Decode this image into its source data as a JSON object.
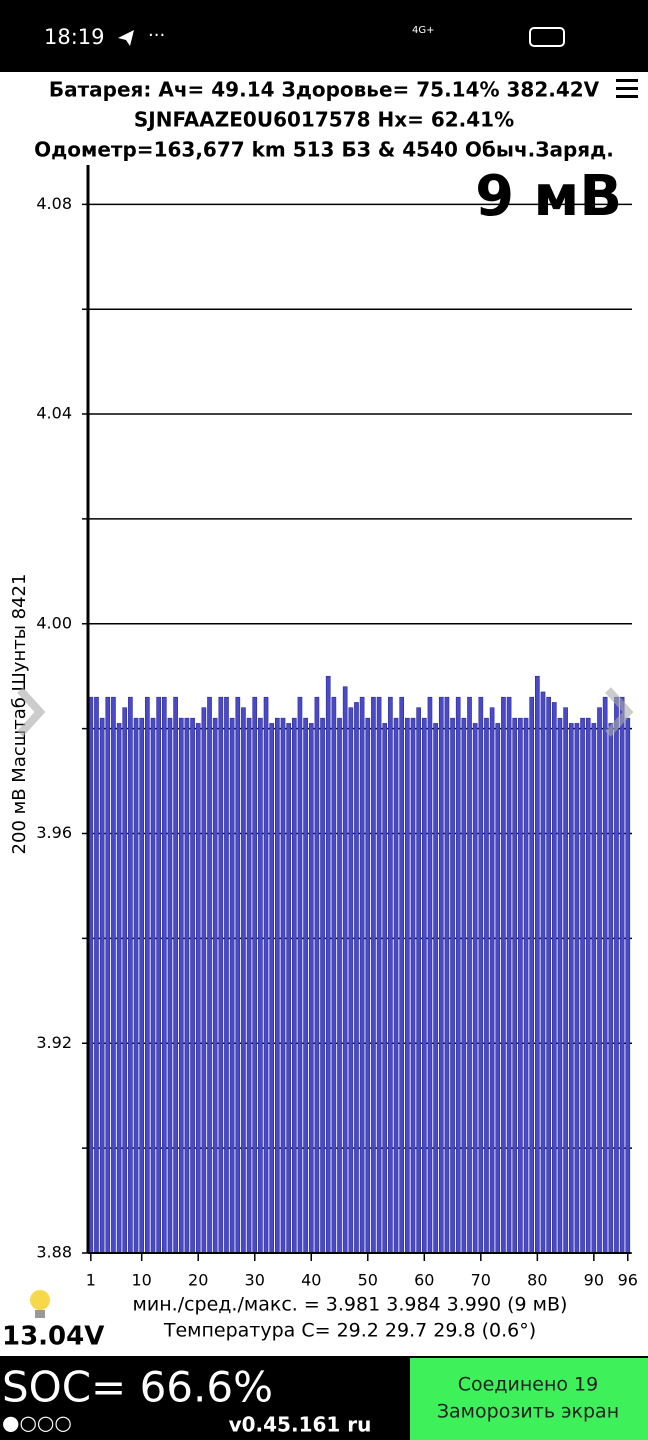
{
  "status_bar": {
    "time": "18:19",
    "network": "4G+"
  },
  "header": {
    "line1": "Батарея: Ач= 49.14 Здоровье= 75.14% 382.42V",
    "line2": "SJNFAAZE0U6017578   Hx= 62.41%",
    "line3": "Одометр=163,677 km 513 БЗ & 4540 Обыч.Заряд."
  },
  "chart_data": {
    "type": "bar",
    "annotation": "9 мВ",
    "y_label": "200 мВ Масштаб  Шунты 8421",
    "x": [
      1,
      2,
      3,
      4,
      5,
      6,
      7,
      8,
      9,
      10,
      11,
      12,
      13,
      14,
      15,
      16,
      17,
      18,
      19,
      20,
      21,
      22,
      23,
      24,
      25,
      26,
      27,
      28,
      29,
      30,
      31,
      32,
      33,
      34,
      35,
      36,
      37,
      38,
      39,
      40,
      41,
      42,
      43,
      44,
      45,
      46,
      47,
      48,
      49,
      50,
      51,
      52,
      53,
      54,
      55,
      56,
      57,
      58,
      59,
      60,
      61,
      62,
      63,
      64,
      65,
      66,
      67,
      68,
      69,
      70,
      71,
      72,
      73,
      74,
      75,
      76,
      77,
      78,
      79,
      80,
      81,
      82,
      83,
      84,
      85,
      86,
      87,
      88,
      89,
      90,
      91,
      92,
      93,
      94,
      95,
      96
    ],
    "values": [
      3.986,
      3.986,
      3.982,
      3.986,
      3.986,
      3.981,
      3.984,
      3.986,
      3.982,
      3.982,
      3.986,
      3.982,
      3.986,
      3.986,
      3.982,
      3.986,
      3.982,
      3.982,
      3.982,
      3.981,
      3.984,
      3.986,
      3.982,
      3.986,
      3.986,
      3.982,
      3.986,
      3.984,
      3.982,
      3.986,
      3.982,
      3.986,
      3.981,
      3.982,
      3.982,
      3.981,
      3.982,
      3.986,
      3.982,
      3.981,
      3.986,
      3.982,
      3.99,
      3.986,
      3.982,
      3.988,
      3.984,
      3.985,
      3.986,
      3.982,
      3.986,
      3.986,
      3.981,
      3.986,
      3.982,
      3.986,
      3.982,
      3.982,
      3.984,
      3.982,
      3.986,
      3.981,
      3.986,
      3.986,
      3.982,
      3.986,
      3.982,
      3.986,
      3.981,
      3.986,
      3.982,
      3.984,
      3.981,
      3.986,
      3.986,
      3.982,
      3.982,
      3.982,
      3.986,
      3.99,
      3.987,
      3.986,
      3.985,
      3.982,
      3.984,
      3.981,
      3.981,
      3.982,
      3.982,
      3.981,
      3.984,
      3.986,
      3.981,
      3.986,
      3.986,
      3.982
    ],
    "color": "#4a4ac8",
    "xlim": [
      0.5,
      96.5
    ],
    "xticks": [
      1,
      10,
      20,
      30,
      40,
      50,
      60,
      70,
      80,
      90,
      96
    ],
    "ylim": [
      3.88,
      4.0875
    ],
    "yticks": [
      3.88,
      3.92,
      3.96,
      {
        "value": 4,
        "label": "4.00"
      },
      4.04,
      4.08
    ],
    "minor_yticks": [
      3.9,
      3.94,
      3.98,
      4.02,
      4.06
    ],
    "grid": true
  },
  "stats": {
    "line1": "мин./сред./макс. = 3.981 3.984 3.990  (9 мВ)",
    "line2": "Температура С= 29.2  29.7  29.8  (0.6°)"
  },
  "footer": {
    "voltage": "13.04V",
    "soc": "SOC= 66.6%",
    "dots": "●○○○",
    "version": "v0.45.161 ru",
    "button_line1": "Соединено 19",
    "button_line2": "Заморозить экран"
  }
}
